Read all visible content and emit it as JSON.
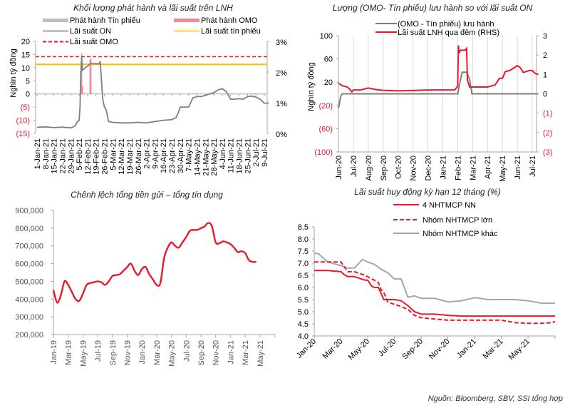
{
  "source": "Nguồn:  Bloomberg, SBV, SSI tổng hợp",
  "chart_data": [
    {
      "id": "issuance",
      "type": "line",
      "title": "Khối lượng phát hành và lãi suất trên LNH",
      "ylabel": "Nghìn tỷ đồng",
      "ylim": [
        -15,
        20
      ],
      "yticks": [
        "20",
        "15",
        "10",
        "5",
        "0",
        "(5)",
        "(10)",
        "(15)"
      ],
      "ytick_values": [
        20,
        15,
        10,
        5,
        0,
        -5,
        -10,
        -15
      ],
      "y2lim": [
        0,
        3
      ],
      "y2ticks": [
        "0%",
        "1%",
        "2%",
        "3%"
      ],
      "xticks": [
        "1-Jan-21",
        "8-Jan-21",
        "15-Jan-21",
        "22-Jan-21",
        "29-Jan-21",
        "5-Feb-21",
        "12-Feb-21",
        "19-Feb-21",
        "26-Feb-21",
        "5-Mar-21",
        "12-Mar-21",
        "19-Mar-21",
        "26-Mar-21",
        "2-Apr-21",
        "9-Apr-21",
        "16-Apr-21",
        "23-Apr-21",
        "30-Apr-21",
        "7-May-21",
        "14-May-21",
        "21-May-21",
        "28-May-21",
        "4-Jun-21",
        "11-Jun-21",
        "18-Jun-21",
        "25-Jun-21",
        "2-Jul-21",
        "9-Jul-21"
      ],
      "legend": [
        {
          "label": "Phát hành  Tín phiếu",
          "color": "#bfbfbf",
          "style": "bar"
        },
        {
          "label": "Phát hành OMO",
          "color": "#f08a98",
          "style": "bar"
        },
        {
          "label": "Lãi suất ON",
          "color": "#7f7f7f",
          "style": "line"
        },
        {
          "label": "Lãi suất tín phiếu",
          "color": "#ffc000",
          "style": "line"
        },
        {
          "label": "Lãi suất OMO",
          "color": "#e8192c",
          "style": "dashed"
        }
      ],
      "omo_rate_pct": 2.5,
      "bill_rate_pct": 2.25,
      "omo_issuance": [
        {
          "x": 5.3,
          "y": 15.5
        },
        {
          "x": 5.4,
          "y": 3
        },
        {
          "x": 6.3,
          "y": 13
        },
        {
          "x": 6.4,
          "y": 13.5
        }
      ],
      "series_on": {
        "name": "Lãi suất ON",
        "x": [
          0,
          1,
          2,
          3,
          4,
          4.5,
          4.8,
          5.0,
          5.1,
          5.2,
          5.3,
          5.4,
          5.6,
          5.8,
          6.0,
          6.3,
          6.6,
          7.0,
          7.4,
          7.5,
          7.8,
          8.0,
          8.2,
          8.5,
          9,
          10,
          11,
          12,
          13,
          14,
          15,
          16,
          16.5,
          16.8,
          17,
          17.5,
          18,
          18.5,
          19,
          19.5,
          20,
          20.5,
          21,
          21.5,
          22,
          22.5,
          23,
          23.5,
          24,
          24.5,
          25,
          25.5,
          26,
          26.5,
          27,
          27.5
        ],
        "y": [
          -12.7,
          -12.5,
          -12.8,
          -12.6,
          -12.9,
          -12.2,
          -10.5,
          -10,
          -5,
          8,
          14,
          9,
          9.5,
          10.2,
          10.5,
          11.5,
          11.5,
          11.5,
          11.5,
          12.5,
          -2,
          -5,
          -6,
          -10.5,
          -10.8,
          -11,
          -11,
          -10.8,
          -11,
          -10.5,
          -10,
          -9.8,
          -9,
          -7,
          -5,
          -5,
          -5,
          -1.5,
          -1,
          -1,
          -0.5,
          0,
          0.5,
          1.5,
          2,
          0.8,
          -2,
          -2,
          -1.8,
          -2,
          -1,
          -0.8,
          -1.2,
          -2,
          -3.5,
          -3.5
        ]
      }
    },
    {
      "id": "omo-bills",
      "type": "line",
      "title": "Lượng (OMO- Tín phiếu) lưu hành so với lãi suất ON",
      "ylabel": "Nghìn tỷ đồng",
      "ylim": [
        -100,
        100
      ],
      "yticks": [
        "100",
        "60",
        "20",
        "(20)",
        "(60)",
        "(100)"
      ],
      "ytick_values": [
        100,
        60,
        20,
        -20,
        -60,
        -100
      ],
      "y2lim": [
        -3,
        3
      ],
      "y2ticks": [
        "3",
        "2",
        "1",
        "0",
        "(1)",
        "(2)",
        "(3)"
      ],
      "y2tick_values": [
        3,
        2,
        1,
        0,
        -1,
        -2,
        -3
      ],
      "xticks": [
        "Jun-20",
        "Jul-20",
        "Aug-20",
        "Sep-20",
        "Oct-20",
        "Nov-20",
        "Dec-20",
        "Jan-21",
        "Feb-21",
        "Mar-21",
        "Apr-21",
        "May-21",
        "Jun-21",
        "Jul-21"
      ],
      "legend": [
        {
          "label": "(OMO - Tín  phiếu)  lưu hành",
          "color": "#7f7f7f"
        },
        {
          "label": "Lãi suất LNH  qua đêm (RHS)",
          "color": "#e8192c"
        }
      ],
      "series": [
        {
          "name": "(OMO - Tín phiếu) lưu hành",
          "axis": "left",
          "color": "#7f7f7f",
          "x": [
            0,
            0.05,
            0.15,
            0.25,
            8.0,
            8.15,
            8.3,
            8.6,
            8.8,
            8.95,
            13.4
          ],
          "y": [
            -25,
            -20,
            -5,
            0,
            0,
            20,
            37,
            37,
            25,
            0,
            0
          ]
        },
        {
          "name": "Lãi suất LNH qua đêm (RHS)",
          "axis": "right",
          "color": "#e8192c",
          "x": [
            0,
            0.3,
            0.6,
            0.8,
            0.9,
            1,
            1.5,
            2,
            2.5,
            3,
            4,
            5,
            6,
            7,
            7.8,
            8.0,
            8.05,
            8.1,
            8.15,
            8.2,
            8.5,
            8.6,
            8.65,
            8.8,
            9,
            9.5,
            10,
            10.5,
            10.8,
            11,
            11.2,
            11.5,
            12,
            12.2,
            12.4,
            12.8,
            13.0,
            13.2,
            13.4
          ],
          "y": [
            0.55,
            0.4,
            0.35,
            0.2,
            0.1,
            0.2,
            0.2,
            0.3,
            0.22,
            0.18,
            0.15,
            0.17,
            0.2,
            0.2,
            0.2,
            0.4,
            2.5,
            2.1,
            2.2,
            2.25,
            2.25,
            2.35,
            0.7,
            0.35,
            0.35,
            0.35,
            0.35,
            0.45,
            0.8,
            0.8,
            1.15,
            1.2,
            1.45,
            1.35,
            1.1,
            1.2,
            1.2,
            1.05,
            1.0
          ]
        }
      ]
    },
    {
      "id": "deposit-credit-gap",
      "type": "line",
      "title": "Chênh lệch tổng tiền gửi – tổng tín dụng",
      "ylim": [
        200000,
        900000
      ],
      "yticks": [
        "900,000",
        "800,000",
        "700,000",
        "600,000",
        "500,000",
        "400,000",
        "300,000",
        "200,000"
      ],
      "ytick_values": [
        900000,
        800000,
        700000,
        600000,
        500000,
        400000,
        300000,
        200000
      ],
      "xticks": [
        "Jan-19",
        "Mar-19",
        "May-19",
        "Jul-19",
        "Sep-19",
        "Nov-19",
        "Jan-20",
        "Mar-20",
        "May-20",
        "Jul-20",
        "Sep-20",
        "Nov-20",
        "Jan-21",
        "Mar-21",
        "May-21"
      ],
      "series": [
        {
          "name": "Chênh lệch",
          "color": "#e8192c",
          "x": [
            0,
            0.5,
            1,
            1.5,
            2,
            2.5,
            3,
            3.5,
            4,
            4.5,
            5,
            5.5,
            6,
            6.5,
            7,
            7.5,
            8,
            8.5,
            9,
            9.5,
            10,
            10.5,
            11,
            11.5,
            12,
            12.5,
            13,
            13.5,
            14,
            14.5,
            15,
            15.5,
            16,
            16.5,
            17,
            17.5,
            18,
            18.5,
            19,
            19.5,
            20,
            20.5,
            21,
            21.5,
            22,
            22.5,
            23,
            23.5,
            24,
            24.5,
            25,
            25.5,
            26,
            26.5,
            27,
            27.5,
            28,
            28.5,
            29
          ],
          "y": [
            450000,
            380000,
            420000,
            500000,
            480000,
            440000,
            400000,
            390000,
            430000,
            480000,
            490000,
            495000,
            500000,
            495000,
            480000,
            500000,
            530000,
            535000,
            540000,
            560000,
            580000,
            600000,
            560000,
            535000,
            570000,
            580000,
            540000,
            510000,
            480000,
            490000,
            630000,
            690000,
            720000,
            700000,
            690000,
            720000,
            750000,
            785000,
            790000,
            790000,
            800000,
            810000,
            830000,
            810000,
            720000,
            715000,
            725000,
            720000,
            710000,
            690000,
            665000,
            670000,
            660000,
            620000,
            610000,
            610000,
            610000,
            610000,
            610000
          ]
        }
      ]
    },
    {
      "id": "deposit-rate-12m",
      "type": "line",
      "title": "Lãi suất huy động kỳ hạn 12 tháng (%)",
      "ylim": [
        4.0,
        8.5
      ],
      "yticks": [
        "8.5",
        "8.0",
        "7.5",
        "7.0",
        "6.5",
        "6.0",
        "5.5",
        "5.0",
        "4.5",
        "4.0"
      ],
      "ytick_values": [
        8.5,
        8.0,
        7.5,
        7.0,
        6.5,
        6.0,
        5.5,
        5.0,
        4.5,
        4.0
      ],
      "xticks": [
        "Jan-20",
        "Mar-20",
        "May-20",
        "Jul-20",
        "Sep-20",
        "Nov-20",
        "Jan-21",
        "Mar-21",
        "May-21"
      ],
      "legend": [
        {
          "label": "4 NHTMCP NN",
          "color": "#e8192c",
          "style": "solid"
        },
        {
          "label": "Nhóm NHTMCP lớn",
          "color": "#e8192c",
          "style": "dashed"
        },
        {
          "label": "Nhóm NHTMCP khác",
          "color": "#a6a6a6",
          "style": "solid"
        }
      ],
      "series": [
        {
          "name": "4 NHTMCP NN",
          "color": "#e8192c",
          "dash": false,
          "x": [
            0,
            1,
            2,
            2.2,
            2.5,
            3,
            3.8,
            4,
            4.3,
            4.5,
            4.8,
            5.2,
            5.5,
            6,
            6.5,
            7,
            7.5,
            8,
            9,
            10,
            11,
            12,
            13,
            14,
            15,
            16,
            17,
            18
          ],
          "y": [
            6.7,
            6.7,
            6.65,
            6.55,
            6.45,
            6.45,
            6.3,
            6.3,
            6.05,
            6.0,
            6.0,
            5.5,
            5.5,
            5.5,
            5.45,
            5.25,
            5.0,
            4.9,
            4.9,
            4.85,
            4.82,
            4.82,
            4.82,
            4.82,
            4.82,
            4.82,
            4.82,
            4.82
          ]
        },
        {
          "name": "Nhóm NHTMCP lớn",
          "color": "#e8192c",
          "dash": true,
          "x": [
            0,
            1,
            2,
            2.5,
            3,
            3.8,
            4.3,
            4.5,
            4.8,
            5.0,
            5.2,
            5.5,
            6,
            6.3,
            7,
            7.5,
            8,
            9,
            10,
            11,
            12,
            13,
            14,
            15,
            16,
            17,
            17.8,
            18
          ],
          "y": [
            7.05,
            7.05,
            7.05,
            6.65,
            6.65,
            6.5,
            6.35,
            6.3,
            6.2,
            5.9,
            5.8,
            5.4,
            5.3,
            5.25,
            5.1,
            4.85,
            4.75,
            4.7,
            4.65,
            4.65,
            4.65,
            4.65,
            4.65,
            4.55,
            4.52,
            4.52,
            4.55,
            4.6
          ]
        },
        {
          "name": "Nhóm NHTMCP khác",
          "color": "#a6a6a6",
          "dash": false,
          "x": [
            0,
            0.3,
            1,
            2,
            2.5,
            3,
            3.6,
            4,
            4.5,
            5,
            5.5,
            6,
            6.5,
            7,
            7.5,
            8,
            9,
            10,
            11,
            12,
            13,
            14,
            15,
            16,
            17,
            18
          ],
          "y": [
            7.4,
            7.4,
            7.05,
            6.9,
            6.8,
            6.8,
            7.15,
            7.05,
            6.95,
            6.75,
            6.6,
            6.35,
            6.35,
            5.6,
            5.65,
            5.55,
            5.55,
            5.4,
            5.45,
            5.58,
            5.5,
            5.5,
            5.5,
            5.45,
            5.35,
            5.35
          ]
        }
      ]
    }
  ]
}
